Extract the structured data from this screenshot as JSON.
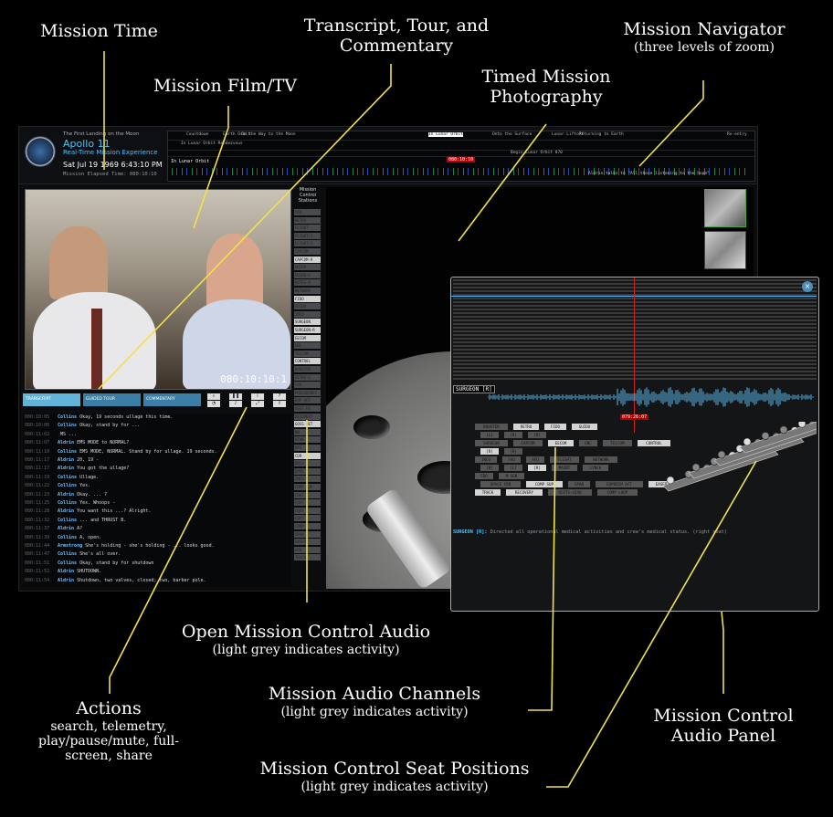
{
  "callouts": {
    "mission_time": "Mission Time",
    "film_tv": "Mission Film/TV",
    "transcript_t1": "Transcript, Tour, and",
    "transcript_t2": "Commentary",
    "photography_t1": "Timed Mission",
    "photography_t2": "Photography",
    "navigator_title": "Mission Navigator",
    "navigator_sub": "(three levels of zoom)",
    "open_audio_title": "Open Mission Control Audio",
    "open_audio_sub": "(light grey indicates activity)",
    "channels_title": "Mission Audio Channels",
    "channels_sub": "(light grey indicates activity)",
    "panel_t1": "Mission Control",
    "panel_t2": "Audio Panel",
    "actions_title": "Actions",
    "actions_l1": "search, telemetry,",
    "actions_l2": "play/pause/mute, full-",
    "actions_l3": "screen, share",
    "seats_title": "Mission Control Seat Positions",
    "seats_sub": "(light grey indicates activity)"
  },
  "header": {
    "superscript": "The First Landing on the Moon",
    "title": "Apollo 11",
    "subtitle": "Real-Time Mission Experience",
    "clock": "Sat Jul 19 1969   6:43:10 PM",
    "met_label": "Mission Elapsed Time: 080:10:10"
  },
  "navigator": {
    "segments": [
      "Countdown",
      "Earth Orbit",
      "On the Way to the Moon",
      "In Lunar Orbit",
      "Onto the Surface",
      "Lunar Liftoff",
      "Returning to Earth",
      "Re-entry"
    ],
    "sub_segment": "In Lunar Orbit Rendezvous",
    "current_met": "080:10:10",
    "orbit_label": "In Lunar Orbit",
    "begin_label": "Begin Lunar Orbit 070",
    "quote": "Aldrin talks to \"All those listening to the hope\""
  },
  "video": {
    "met": "080:10:10:1"
  },
  "tabs": [
    "TRANSCRIPT",
    "GUIDED TOUR",
    "COMMENTARY"
  ],
  "actions": [
    "search-icon",
    "telemetry-icon",
    "pause-icon",
    "mute-icon",
    "fullscreen-icon",
    "share-icon"
  ],
  "transcript": [
    {
      "t": "080:10:05",
      "s": "Collins",
      "x": "Okay, 19 seconds ullage this time."
    },
    {
      "t": "080:10:06",
      "s": "Collins",
      "x": "Okay, stand by for ..."
    },
    {
      "t": "080:11:02",
      "s": "",
      "x": "MS ..."
    },
    {
      "t": "080:11:07",
      "s": "Aldrin",
      "x": "EMS MODE to NORMAL?"
    },
    {
      "t": "080:11:10",
      "s": "Collins",
      "x": "EMS MODE, NORMAL. Stand by for ullage. 19 seconds."
    },
    {
      "t": "080:11:17",
      "s": "Aldrin",
      "x": "20, 19 -"
    },
    {
      "t": "080:11:17",
      "s": "Aldrin",
      "x": "You got the ullage?"
    },
    {
      "t": "080:11:19",
      "s": "Collins",
      "x": "Ullage."
    },
    {
      "t": "080:11:22",
      "s": "Collins",
      "x": "Yes."
    },
    {
      "t": "080:11:23",
      "s": "Aldrin",
      "x": "Okay. ... ?"
    },
    {
      "t": "080:11:25",
      "s": "Collins",
      "x": "Yes. Whoops -"
    },
    {
      "t": "080:11:28",
      "s": "Aldrin",
      "x": "You want this ...? Alright."
    },
    {
      "t": "080:11:32",
      "s": "Collins",
      "x": "... and THRUST B."
    },
    {
      "t": "080:11:37",
      "s": "Aldrin",
      "x": "A?"
    },
    {
      "t": "080:11:39",
      "s": "Collins",
      "x": "A, open."
    },
    {
      "t": "080:11:44",
      "s": "Armstrong",
      "x": "She's holding - she's holding - ... looks good."
    },
    {
      "t": "080:11:47",
      "s": "Collins",
      "x": "She's all over."
    },
    {
      "t": "080:11:51",
      "s": "Collins",
      "x": "Okay, stand by for shutdown"
    },
    {
      "t": "080:11:52",
      "s": "Aldrin",
      "x": "SHUTDOWN."
    },
    {
      "t": "080:11:54",
      "s": "Aldrin",
      "x": "Shutdown, two valves, closed; two, barber pole."
    }
  ],
  "mocr": {
    "title_l1": "Mission",
    "title_l2": "Control",
    "title_l3": "Stations",
    "stations": [
      "FDO",
      "RETRO",
      "FLIGHT",
      "FLIGHT-1",
      "FLIGHT-2",
      "CAPCOM",
      "CAPCOM-R",
      "GUIDO",
      "GUIDO-L",
      "ROTES-R",
      "NETWORK",
      "FIDO",
      "GUIDO",
      "INCO",
      "SURGEON",
      "SURGEON-R",
      "EECOM",
      "GNC",
      "TELCOM",
      "CONTROL",
      "BOOSTER",
      "RETRO-1",
      "FAO",
      "PROCEDURES",
      "EXP ACT",
      "ASST FD",
      "RECOVERY",
      "GOSS NET",
      "NW",
      "NTWK",
      "OPS",
      "CDR",
      "DOCS",
      "EPOS",
      "INCO-3",
      "COMP SUP",
      "COAT",
      "COAT",
      "COAT",
      "COAT",
      "COMP",
      "SPAN",
      "EASEP",
      "AFD",
      "TRACK"
    ],
    "active": [
      6,
      11,
      14,
      15,
      16,
      19,
      27,
      31
    ]
  },
  "panel": {
    "close": "×",
    "channel_label": "SURGEON [R]",
    "met": "079:26:07",
    "buttons": [
      {
        "l": "BOOSTER",
        "a": false
      },
      {
        "l": "RETRO",
        "a": true
      },
      {
        "l": "FIDO",
        "a": true
      },
      {
        "l": "GUIDO",
        "a": true
      },
      {
        "l": "[L]",
        "a": false
      },
      {
        "l": "[R]",
        "a": false
      },
      {
        "l": "[R]",
        "a": false
      },
      {
        "l": "SURGEON",
        "a": false
      },
      {
        "l": "CAPCOM",
        "a": false
      },
      {
        "l": "EECOM",
        "a": true
      },
      {
        "l": "GNC",
        "a": false
      },
      {
        "l": "TELCOM",
        "a": false
      },
      {
        "l": "CONTROL",
        "a": true
      },
      {
        "l": "[R]",
        "a": true
      },
      {
        "l": "[R]",
        "a": false
      },
      {
        "l": "INCO",
        "a": false
      },
      {
        "l": "FAO",
        "a": false
      },
      {
        "l": "AFD",
        "a": false
      },
      {
        "l": "FLIGHT",
        "a": false
      },
      {
        "l": "NETWORK",
        "a": false
      },
      {
        "l": "[R]",
        "a": false
      },
      {
        "l": "[L]",
        "a": false
      },
      {
        "l": "[R]",
        "a": true
      },
      {
        "l": "MAINT",
        "a": false
      },
      {
        "l": "LYNCH",
        "a": false
      },
      {
        "l": "FDO",
        "a": false
      },
      {
        "l": "M SEN",
        "a": false
      },
      {
        "l": "SPACE CRR",
        "a": false
      },
      {
        "l": "COMP SUP",
        "a": true
      },
      {
        "l": "SPAN",
        "a": false
      },
      {
        "l": "EXPERIM ACT",
        "a": false
      },
      {
        "l": "EASEP",
        "a": true
      },
      {
        "l": "TRACK",
        "a": true
      },
      {
        "l": "RECOVERY",
        "a": true
      },
      {
        "l": "OCATS-LEAD",
        "a": false
      },
      {
        "l": "COMP LOOP",
        "a": false
      }
    ],
    "description_label": "SURGEON [R]:",
    "description_text": "Directed all operational medical activities and crew's medical status. (right seat)"
  }
}
